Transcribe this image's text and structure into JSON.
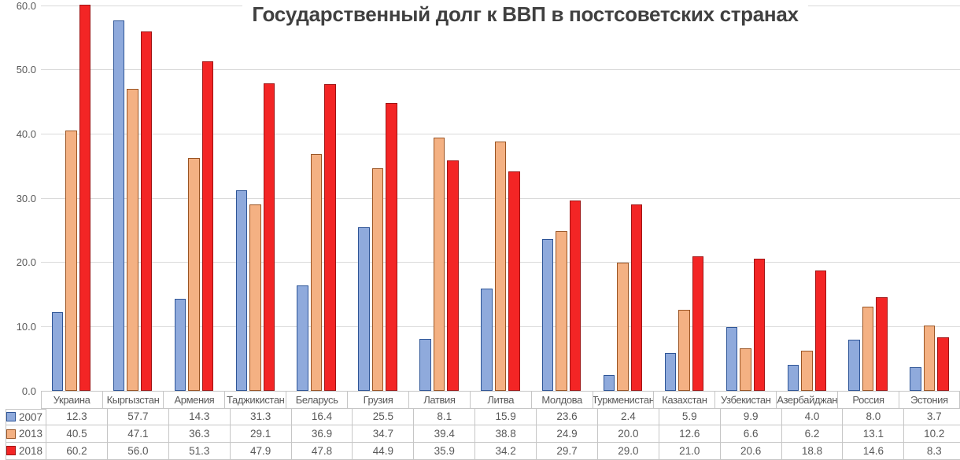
{
  "chart_data": {
    "type": "bar",
    "title": "Государственный долг к ВВП в постсоветских странах",
    "categories": [
      "Украина",
      "Кыргызстан",
      "Армения",
      "Таджикистан",
      "Беларусь",
      "Грузия",
      "Латвия",
      "Литва",
      "Молдова",
      "Туркменистан",
      "Казахстан",
      "Узбекистан",
      "Азербайджан",
      "Россия",
      "Эстония"
    ],
    "series": [
      {
        "name": "2007",
        "fill": "#8FAADC",
        "border": "#2E5597",
        "values": [
          12.3,
          57.7,
          14.3,
          31.3,
          16.4,
          25.5,
          8.1,
          15.9,
          23.6,
          2.4,
          5.9,
          9.9,
          4.0,
          8.0,
          3.7
        ]
      },
      {
        "name": "2013",
        "fill": "#F4B183",
        "border": "#9A5423",
        "values": [
          40.5,
          47.1,
          36.3,
          29.1,
          36.9,
          34.7,
          39.4,
          38.8,
          24.9,
          20.0,
          12.6,
          6.6,
          6.2,
          13.1,
          10.2
        ]
      },
      {
        "name": "2018",
        "fill": "#F32525",
        "border": "#9E1414",
        "values": [
          60.2,
          56.0,
          51.3,
          47.9,
          47.8,
          44.9,
          35.9,
          34.2,
          29.7,
          29.0,
          21.0,
          20.6,
          18.8,
          14.6,
          8.3
        ]
      }
    ],
    "ylim": [
      0,
      60
    ],
    "ytick_labels": [
      "0.0",
      "10.0",
      "20.0",
      "30.0",
      "40.0",
      "50.0",
      "60.0"
    ],
    "value_decimals": 1,
    "grid": "horizontal",
    "legend_position": "data-table-left-column",
    "data_table": true,
    "colors": {
      "grid": "#DADADA",
      "table_border": "#C6C6C6",
      "axis_text": "#595959",
      "table_text": "#595959",
      "title_text": "#404040",
      "background": "#FFFFFF"
    }
  }
}
